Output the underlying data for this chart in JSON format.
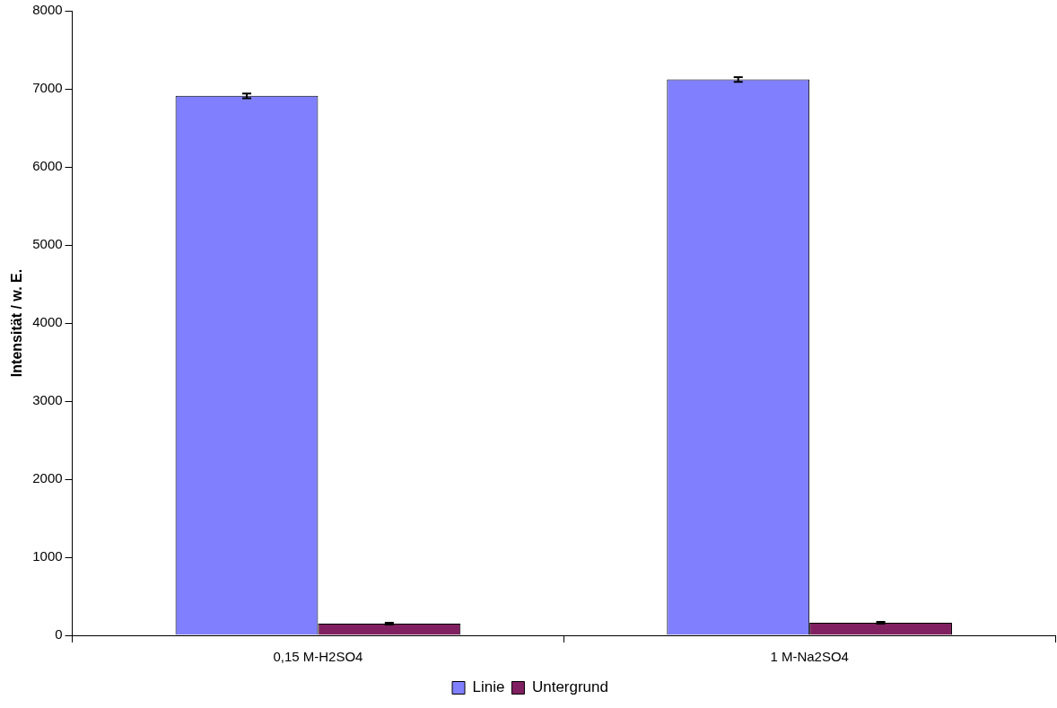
{
  "chart_data": {
    "type": "bar",
    "ylabel": "Intensität / w. E.",
    "categories": [
      "0,15 M-H2SO4",
      "1 M-Na2SO4"
    ],
    "series": [
      {
        "name": "Linie",
        "color": "#8080ff",
        "values": [
          6910,
          7120
        ],
        "errors": [
          30,
          30
        ]
      },
      {
        "name": "Untergrund",
        "color": "#802060",
        "values": [
          150,
          160
        ],
        "errors": [
          12,
          12
        ]
      }
    ],
    "ylim": [
      0,
      8000
    ],
    "yticks": [
      0,
      1000,
      2000,
      3000,
      4000,
      5000,
      6000,
      7000,
      8000
    ],
    "grid": false,
    "legend": "bottom"
  }
}
